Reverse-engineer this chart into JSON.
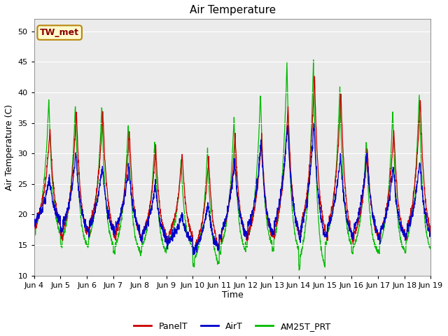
{
  "title": "Air Temperature",
  "xlabel": "Time",
  "ylabel": "Air Temperature (C)",
  "ylim": [
    10,
    52
  ],
  "yticks": [
    10,
    15,
    20,
    25,
    30,
    35,
    40,
    45,
    50
  ],
  "annotation_text": "TW_met",
  "annotation_color": "#8B0000",
  "annotation_bg": "#FFFACD",
  "annotation_border": "#B8860B",
  "line_PanelT_color": "#CC0000",
  "line_AirT_color": "#0000CC",
  "line_AM25T_color": "#00BB00",
  "background_color": "#EBEBEB",
  "xtick_labels": [
    "Jun 4",
    "Jun 5",
    "Jun 6",
    "Jun 7",
    "Jun 8",
    "Jun 9",
    "Jun 10",
    "Jun 11",
    "Jun 12",
    "Jun 13",
    "Jun 14",
    "Jun 15",
    "Jun 16",
    "Jun 17",
    "Jun 18",
    "Jun 19"
  ],
  "legend_labels": [
    "PanelT",
    "AirT",
    "AM25T_PRT"
  ]
}
